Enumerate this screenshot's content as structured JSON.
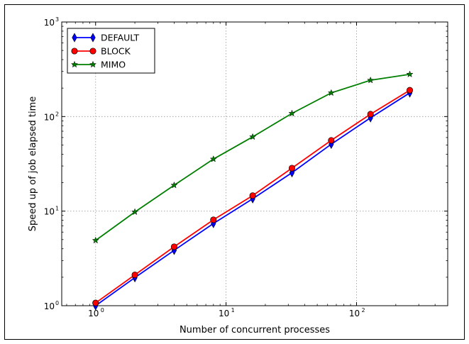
{
  "chart_data": {
    "type": "line",
    "title": "",
    "xlabel": "Number of concurrent processes",
    "ylabel": "Speed up of job elapsed time",
    "xscale": "log",
    "yscale": "log",
    "xlim": [
      0.55,
      500
    ],
    "ylim": [
      1,
      1000
    ],
    "grid": true,
    "legend_position": "top-left",
    "x_ticks": [
      {
        "value": 1,
        "base": "10",
        "exp": "0"
      },
      {
        "value": 10,
        "base": "10",
        "exp": "1"
      },
      {
        "value": 100,
        "base": "10",
        "exp": "2"
      }
    ],
    "y_ticks": [
      {
        "value": 1,
        "base": "10",
        "exp": "0"
      },
      {
        "value": 10,
        "base": "10",
        "exp": "1"
      },
      {
        "value": 100,
        "base": "10",
        "exp": "2"
      },
      {
        "value": 1000,
        "base": "10",
        "exp": "3"
      }
    ],
    "x": [
      1,
      2,
      4,
      8,
      16,
      32,
      64,
      128,
      256
    ],
    "series": [
      {
        "name": "DEFAULT",
        "color": "#0000ff",
        "marker": "thin-diamond",
        "values": [
          1.0,
          1.98,
          3.85,
          7.4,
          13.5,
          25.5,
          51,
          97,
          178
        ]
      },
      {
        "name": "BLOCK",
        "color": "#ff0000",
        "marker": "circle",
        "values": [
          1.07,
          2.12,
          4.2,
          8.1,
          14.6,
          28.5,
          56,
          106,
          190
        ]
      },
      {
        "name": "MIMO",
        "color": "#007f00",
        "marker": "star",
        "values": [
          4.9,
          9.8,
          18.8,
          35.5,
          61,
          108,
          178,
          242,
          280
        ]
      }
    ]
  }
}
